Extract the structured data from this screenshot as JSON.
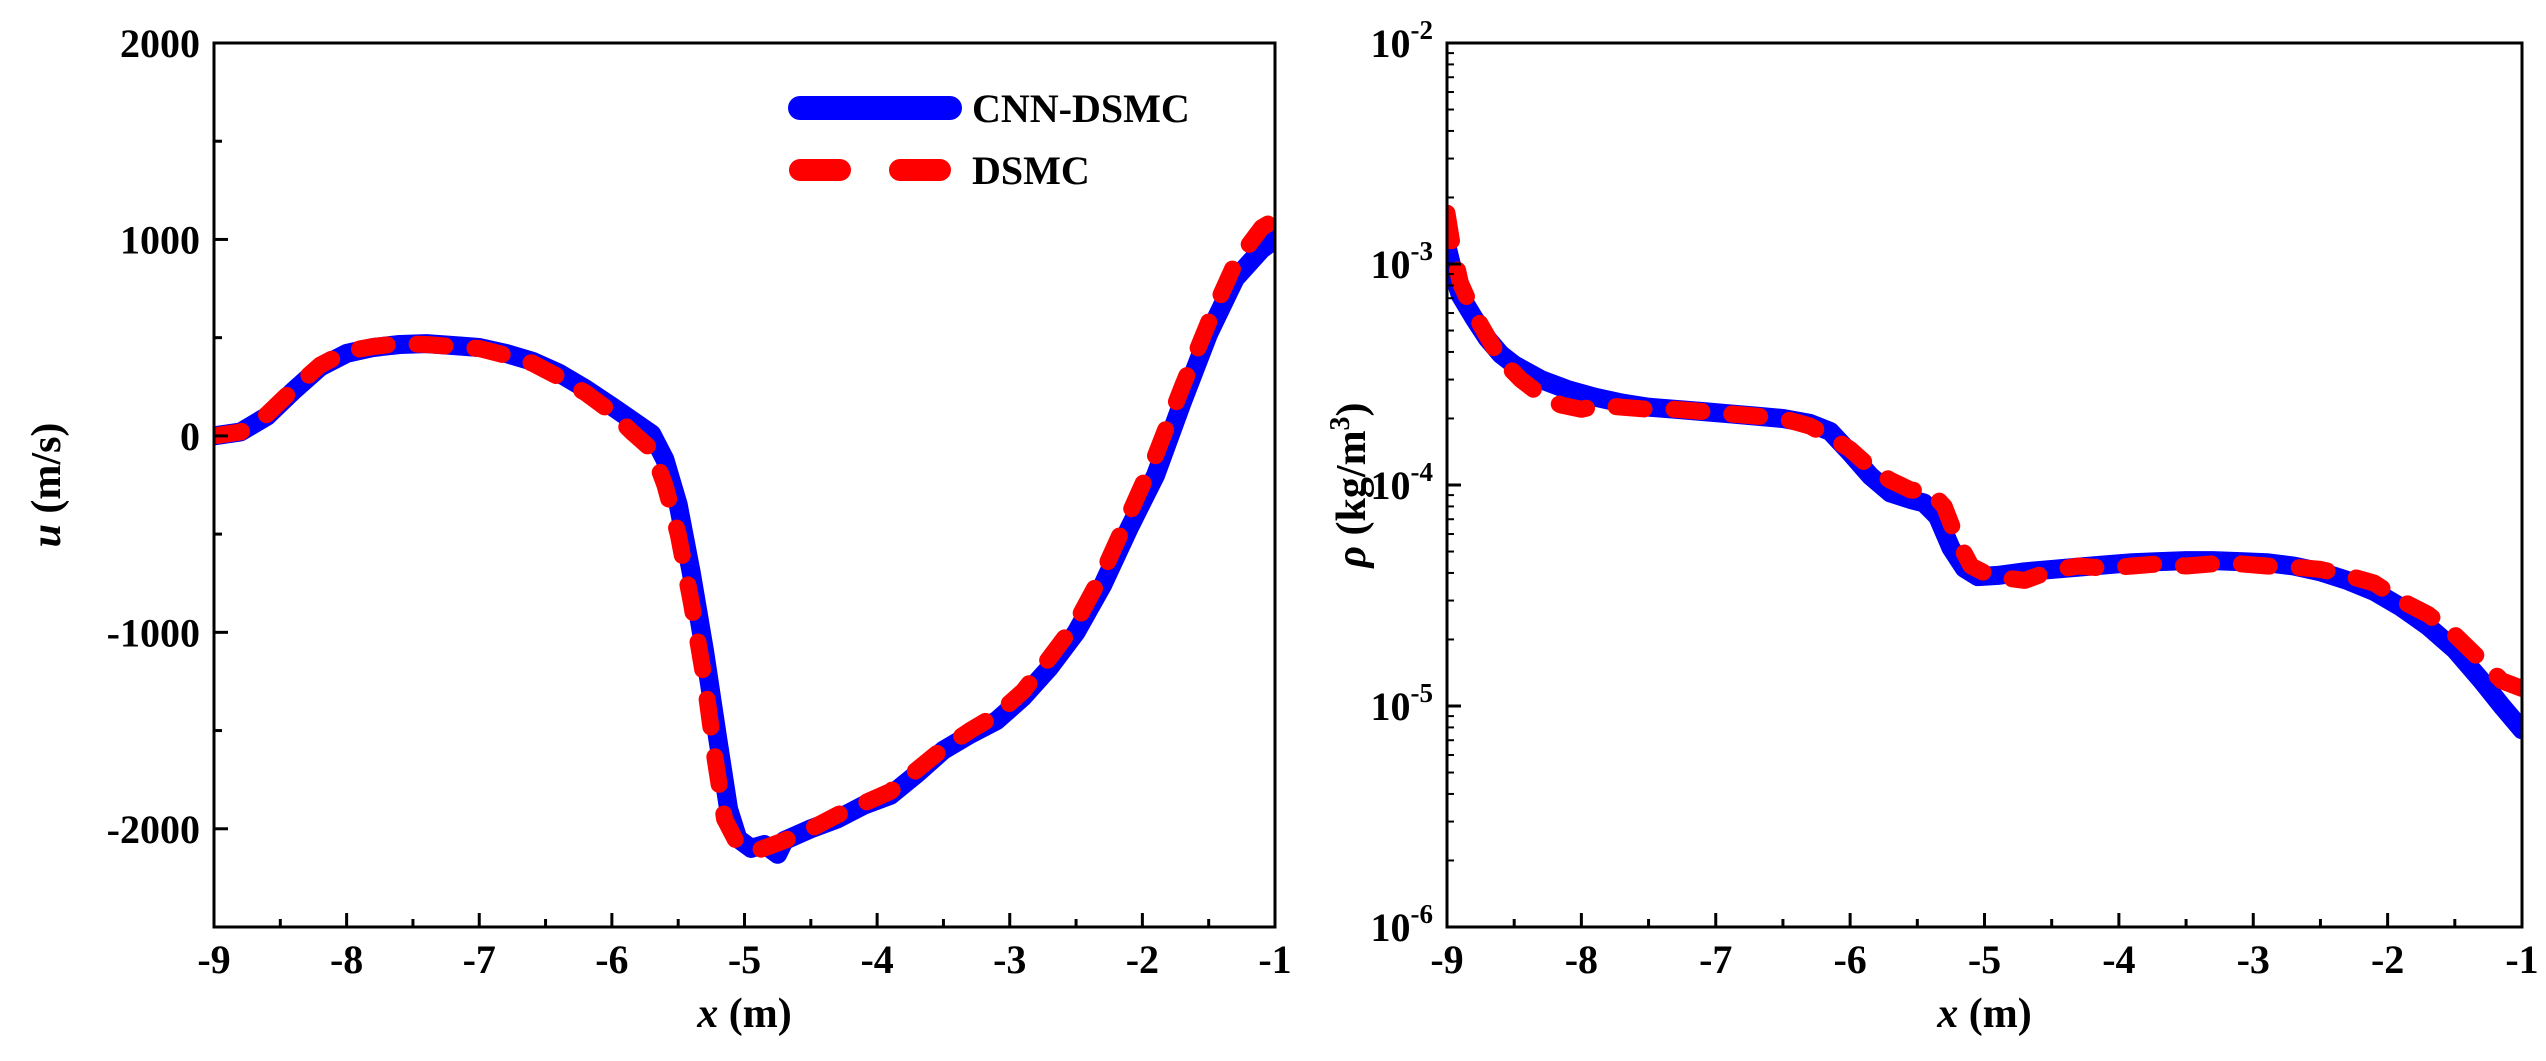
{
  "colors": {
    "cnn_dsmc": "#0000ff",
    "dsmc": "#ff0000",
    "axes": "#000000"
  },
  "chart_data": [
    {
      "type": "line",
      "xlabel_var": "x",
      "xlabel_unit": "(m)",
      "ylabel_var": "u",
      "ylabel_unit": "(m/s)",
      "xlim": [
        -9,
        -1
      ],
      "ylim": [
        -2500,
        2000
      ],
      "x_ticks": [
        -9,
        -8,
        -7,
        -6,
        -5,
        -4,
        -3,
        -2,
        -1
      ],
      "x_tick_labels": [
        "-9",
        "-8",
        "-7",
        "-6",
        "-5",
        "-4",
        "-3",
        "-2",
        "-1"
      ],
      "y_ticks": [
        -2000,
        -1000,
        0,
        1000,
        2000
      ],
      "y_tick_labels": [
        "-2000",
        "-1000",
        "0",
        "1000",
        "2000"
      ],
      "grid": false,
      "legend_position": "top-right",
      "legend": [
        "CNN-DSMC",
        "DSMC"
      ],
      "series": [
        {
          "name": "CNN-DSMC",
          "style": "solid",
          "points": [
            [
              -9.0,
              0
            ],
            [
              -8.8,
              20
            ],
            [
              -8.6,
              100
            ],
            [
              -8.4,
              230
            ],
            [
              -8.2,
              350
            ],
            [
              -8.0,
              420
            ],
            [
              -7.8,
              450
            ],
            [
              -7.6,
              465
            ],
            [
              -7.4,
              470
            ],
            [
              -7.2,
              460
            ],
            [
              -7.0,
              450
            ],
            [
              -6.8,
              420
            ],
            [
              -6.6,
              380
            ],
            [
              -6.4,
              320
            ],
            [
              -6.2,
              240
            ],
            [
              -6.0,
              150
            ],
            [
              -5.85,
              80
            ],
            [
              -5.7,
              10
            ],
            [
              -5.6,
              -120
            ],
            [
              -5.5,
              -350
            ],
            [
              -5.4,
              -700
            ],
            [
              -5.3,
              -1100
            ],
            [
              -5.2,
              -1550
            ],
            [
              -5.12,
              -1900
            ],
            [
              -5.05,
              -2050
            ],
            [
              -4.95,
              -2100
            ],
            [
              -4.85,
              -2080
            ],
            [
              -4.75,
              -2130
            ],
            [
              -4.7,
              -2060
            ],
            [
              -4.5,
              -2000
            ],
            [
              -4.3,
              -1950
            ],
            [
              -4.1,
              -1880
            ],
            [
              -3.9,
              -1830
            ],
            [
              -3.7,
              -1720
            ],
            [
              -3.5,
              -1600
            ],
            [
              -3.3,
              -1520
            ],
            [
              -3.1,
              -1450
            ],
            [
              -2.9,
              -1330
            ],
            [
              -2.7,
              -1180
            ],
            [
              -2.5,
              -1000
            ],
            [
              -2.3,
              -760
            ],
            [
              -2.1,
              -470
            ],
            [
              -1.9,
              -200
            ],
            [
              -1.7,
              170
            ],
            [
              -1.5,
              520
            ],
            [
              -1.3,
              800
            ],
            [
              -1.1,
              950
            ],
            [
              -1.0,
              1000
            ]
          ]
        },
        {
          "name": "DSMC",
          "style": "dashed",
          "points": [
            [
              -9.0,
              0
            ],
            [
              -8.8,
              20
            ],
            [
              -8.6,
              110
            ],
            [
              -8.4,
              240
            ],
            [
              -8.2,
              360
            ],
            [
              -8.0,
              430
            ],
            [
              -7.8,
              455
            ],
            [
              -7.6,
              470
            ],
            [
              -7.4,
              465
            ],
            [
              -7.2,
              455
            ],
            [
              -7.0,
              445
            ],
            [
              -6.8,
              410
            ],
            [
              -6.6,
              370
            ],
            [
              -6.4,
              300
            ],
            [
              -6.2,
              220
            ],
            [
              -6.0,
              120
            ],
            [
              -5.85,
              20
            ],
            [
              -5.7,
              -70
            ],
            [
              -5.6,
              -250
            ],
            [
              -5.5,
              -500
            ],
            [
              -5.4,
              -850
            ],
            [
              -5.3,
              -1250
            ],
            [
              -5.22,
              -1650
            ],
            [
              -5.15,
              -1950
            ],
            [
              -5.05,
              -2080
            ],
            [
              -4.9,
              -2110
            ],
            [
              -4.7,
              -2060
            ],
            [
              -4.5,
              -2000
            ],
            [
              -4.3,
              -1930
            ],
            [
              -4.1,
              -1870
            ],
            [
              -3.9,
              -1810
            ],
            [
              -3.7,
              -1700
            ],
            [
              -3.5,
              -1590
            ],
            [
              -3.3,
              -1500
            ],
            [
              -3.1,
              -1420
            ],
            [
              -2.9,
              -1300
            ],
            [
              -2.7,
              -1130
            ],
            [
              -2.5,
              -950
            ],
            [
              -2.3,
              -700
            ],
            [
              -2.1,
              -400
            ],
            [
              -1.9,
              -100
            ],
            [
              -1.7,
              250
            ],
            [
              -1.5,
              580
            ],
            [
              -1.3,
              880
            ],
            [
              -1.1,
              1060
            ],
            [
              -1.0,
              1100
            ]
          ]
        }
      ]
    },
    {
      "type": "line",
      "yscale": "log",
      "xlabel_var": "x",
      "xlabel_unit": "(m)",
      "ylabel_var": "ρ",
      "ylabel_unit": "(kg/m",
      "ylabel_unit_sup": "3",
      "ylabel_unit_close": ")",
      "xlim": [
        -9,
        -1
      ],
      "ylim": [
        1e-06,
        0.01
      ],
      "x_ticks": [
        -9,
        -8,
        -7,
        -6,
        -5,
        -4,
        -3,
        -2,
        -1
      ],
      "x_tick_labels": [
        "-9",
        "-8",
        "-7",
        "-6",
        "-5",
        "-4",
        "-3",
        "-2",
        "-1"
      ],
      "y_ticks": [
        1e-06,
        1e-05,
        0.0001,
        0.001,
        0.01
      ],
      "y_tick_labels": [
        {
          "base": "10",
          "exp": "-6"
        },
        {
          "base": "10",
          "exp": "-5"
        },
        {
          "base": "10",
          "exp": "-4"
        },
        {
          "base": "10",
          "exp": "-3"
        },
        {
          "base": "10",
          "exp": "-2"
        }
      ],
      "grid": false,
      "series": [
        {
          "name": "CNN-DSMC",
          "style": "solid",
          "points": [
            [
              -9.0,
              0.0012
            ],
            [
              -8.95,
              0.0009
            ],
            [
              -8.9,
              0.00072
            ],
            [
              -8.8,
              0.00057
            ],
            [
              -8.7,
              0.00046
            ],
            [
              -8.6,
              0.00039
            ],
            [
              -8.5,
              0.00035
            ],
            [
              -8.3,
              0.0003
            ],
            [
              -8.1,
              0.00027
            ],
            [
              -7.9,
              0.00025
            ],
            [
              -7.7,
              0.000235
            ],
            [
              -7.5,
              0.000225
            ],
            [
              -7.3,
              0.00022
            ],
            [
              -7.1,
              0.000215
            ],
            [
              -6.9,
              0.00021
            ],
            [
              -6.7,
              0.000205
            ],
            [
              -6.5,
              0.0002
            ],
            [
              -6.3,
              0.00019
            ],
            [
              -6.15,
              0.000175
            ],
            [
              -6.0,
              0.00014
            ],
            [
              -5.85,
              0.00011
            ],
            [
              -5.7,
              9.2e-05
            ],
            [
              -5.55,
              8.6e-05
            ],
            [
              -5.45,
              8.3e-05
            ],
            [
              -5.35,
              7.2e-05
            ],
            [
              -5.25,
              5.2e-05
            ],
            [
              -5.15,
              4.2e-05
            ],
            [
              -5.05,
              3.85e-05
            ],
            [
              -4.9,
              3.9e-05
            ],
            [
              -4.7,
              4.05e-05
            ],
            [
              -4.5,
              4.15e-05
            ],
            [
              -4.3,
              4.25e-05
            ],
            [
              -4.1,
              4.35e-05
            ],
            [
              -3.9,
              4.45e-05
            ],
            [
              -3.7,
              4.5e-05
            ],
            [
              -3.5,
              4.55e-05
            ],
            [
              -3.3,
              4.55e-05
            ],
            [
              -3.1,
              4.5e-05
            ],
            [
              -2.9,
              4.45e-05
            ],
            [
              -2.7,
              4.3e-05
            ],
            [
              -2.5,
              4.05e-05
            ],
            [
              -2.3,
              3.7e-05
            ],
            [
              -2.1,
              3.3e-05
            ],
            [
              -1.9,
              2.8e-05
            ],
            [
              -1.7,
              2.3e-05
            ],
            [
              -1.5,
              1.8e-05
            ],
            [
              -1.3,
              1.3e-05
            ],
            [
              -1.15,
              1e-05
            ],
            [
              -1.0,
              7.8e-06
            ]
          ]
        },
        {
          "name": "DSMC",
          "style": "dashed",
          "points": [
            [
              -9.0,
              0.0017
            ],
            [
              -8.96,
              0.0012
            ],
            [
              -8.9,
              0.00082
            ],
            [
              -8.8,
              0.0006
            ],
            [
              -8.7,
              0.00047
            ],
            [
              -8.6,
              0.00037
            ],
            [
              -8.45,
              0.0003
            ],
            [
              -8.3,
              0.000255
            ],
            [
              -8.15,
              0.00023
            ],
            [
              -8.0,
              0.00022
            ],
            [
              -7.85,
              0.00023
            ],
            [
              -7.7,
              0.000225
            ],
            [
              -7.5,
              0.00022
            ],
            [
              -7.3,
              0.00022
            ],
            [
              -7.1,
              0.000215
            ],
            [
              -6.9,
              0.00021
            ],
            [
              -6.7,
              0.000205
            ],
            [
              -6.5,
              0.0002
            ],
            [
              -6.3,
              0.000185
            ],
            [
              -6.15,
              0.000165
            ],
            [
              -6.0,
              0.000145
            ],
            [
              -5.85,
              0.00012
            ],
            [
              -5.7,
              0.000105
            ],
            [
              -5.55,
              9.5e-05
            ],
            [
              -5.4,
              9.3e-05
            ],
            [
              -5.3,
              8e-05
            ],
            [
              -5.2,
              5.6e-05
            ],
            [
              -5.1,
              4.3e-05
            ],
            [
              -5.0,
              4e-05
            ],
            [
              -4.85,
              3.8e-05
            ],
            [
              -4.7,
              3.7e-05
            ],
            [
              -4.5,
              4.1e-05
            ],
            [
              -4.3,
              4.3e-05
            ],
            [
              -4.1,
              4.2e-05
            ],
            [
              -3.9,
              4.3e-05
            ],
            [
              -3.7,
              4.4e-05
            ],
            [
              -3.5,
              4.3e-05
            ],
            [
              -3.3,
              4.4e-05
            ],
            [
              -3.1,
              4.4e-05
            ],
            [
              -2.9,
              4.3e-05
            ],
            [
              -2.7,
              4.25e-05
            ],
            [
              -2.5,
              4.15e-05
            ],
            [
              -2.3,
              3.9e-05
            ],
            [
              -2.1,
              3.6e-05
            ],
            [
              -1.9,
              3e-05
            ],
            [
              -1.7,
              2.6e-05
            ],
            [
              -1.5,
              2.1e-05
            ],
            [
              -1.3,
              1.6e-05
            ],
            [
              -1.15,
              1.3e-05
            ],
            [
              -1.0,
              1.2e-05
            ]
          ]
        }
      ]
    }
  ]
}
